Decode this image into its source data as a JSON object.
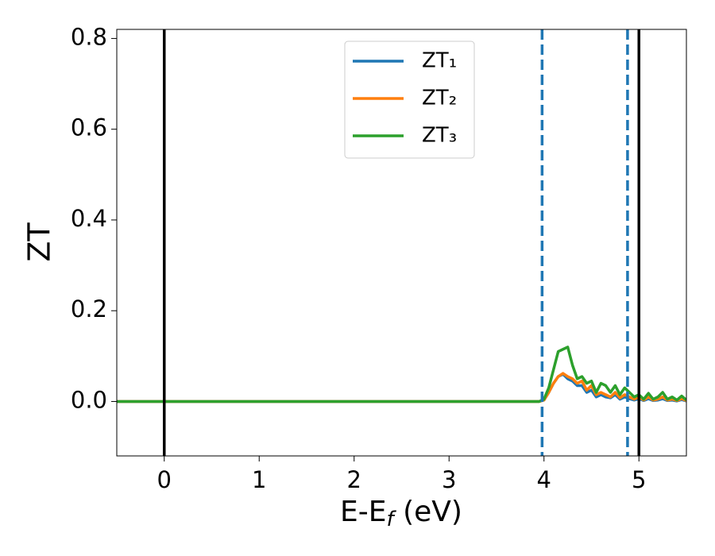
{
  "chart_data": {
    "type": "line",
    "ylabel": "ZT",
    "xlabel_parts": [
      "E-E",
      "f",
      " (eV)"
    ],
    "xlim": [
      -0.5,
      5.5
    ],
    "xticks": [
      0,
      1,
      2,
      3,
      4,
      5
    ],
    "ylim": [
      -0.12,
      0.82
    ],
    "yticks": [
      {
        "value": 0,
        "label": "0.0"
      },
      0.2,
      0.4,
      0.6,
      0.8
    ],
    "legend": "upper center",
    "x": [
      -0.5,
      3.95,
      4.0,
      4.05,
      4.1,
      4.15,
      4.2,
      4.25,
      4.3,
      4.35,
      4.4,
      4.45,
      4.5,
      4.55,
      4.6,
      4.65,
      4.7,
      4.75,
      4.8,
      4.85,
      4.9,
      4.95,
      5.0,
      5.05,
      5.1,
      5.15,
      5.2,
      5.25,
      5.3,
      5.35,
      5.4,
      5.45,
      5.5
    ],
    "series": [
      {
        "name": "ZT₁",
        "color": "#1f77b4",
        "values": [
          0,
          0,
          0.003,
          0.02,
          0.04,
          0.055,
          0.06,
          0.05,
          0.045,
          0.035,
          0.035,
          0.02,
          0.025,
          0.01,
          0.015,
          0.01,
          0.008,
          0.015,
          0.005,
          0.01,
          0.006,
          0.003,
          0.006,
          0.002,
          0.006,
          0.002,
          0.003,
          0.006,
          0.002,
          0.003,
          0.001,
          0.004,
          0.001
        ]
      },
      {
        "name": "ZT₂",
        "color": "#ff7f0e",
        "values": [
          0,
          0,
          0.003,
          0.02,
          0.04,
          0.055,
          0.062,
          0.055,
          0.05,
          0.04,
          0.045,
          0.025,
          0.035,
          0.015,
          0.02,
          0.015,
          0.01,
          0.02,
          0.008,
          0.015,
          0.01,
          0.005,
          0.01,
          0.003,
          0.01,
          0.003,
          0.005,
          0.01,
          0.003,
          0.005,
          0.002,
          0.006,
          0.002
        ]
      },
      {
        "name": "ZT₃",
        "color": "#2ca02c",
        "values": [
          0,
          0,
          0.005,
          0.03,
          0.07,
          0.11,
          0.115,
          0.12,
          0.08,
          0.05,
          0.055,
          0.04,
          0.045,
          0.02,
          0.04,
          0.035,
          0.02,
          0.035,
          0.015,
          0.03,
          0.02,
          0.01,
          0.015,
          0.005,
          0.018,
          0.005,
          0.01,
          0.02,
          0.005,
          0.01,
          0.003,
          0.012,
          0.003
        ]
      }
    ],
    "vlines": [
      {
        "x": 0,
        "color": "#000000",
        "style": "solid"
      },
      {
        "x": 5,
        "color": "#000000",
        "style": "solid"
      },
      {
        "x": 3.98,
        "color": "#1f77b4",
        "style": "dashed"
      },
      {
        "x": 4.88,
        "color": "#1f77b4",
        "style": "dashed"
      }
    ]
  }
}
